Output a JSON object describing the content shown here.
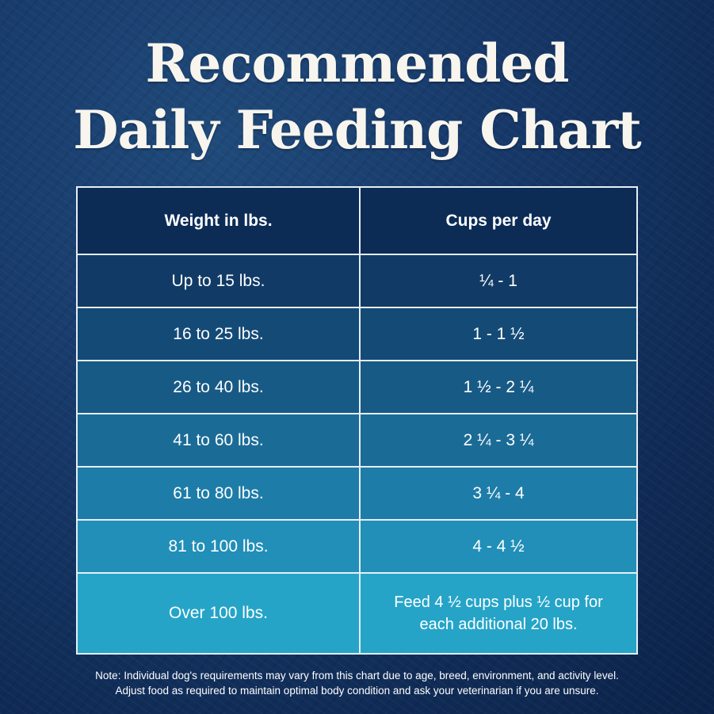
{
  "title": {
    "line1": "Recommended",
    "line2": "Daily Feeding Chart"
  },
  "table": {
    "headers": [
      "Weight in lbs.",
      "Cups per day"
    ],
    "rows": [
      [
        "Up to 15 lbs.",
        "¼  - 1"
      ],
      [
        "16 to 25 lbs.",
        "1  - 1 ½"
      ],
      [
        "26 to 40 lbs.",
        "1 ½  - 2 ¼"
      ],
      [
        "41 to 60 lbs.",
        "2 ¼  - 3 ¼"
      ],
      [
        "61 to 80 lbs.",
        "3 ¼  - 4"
      ],
      [
        "81 to 100 lbs.",
        "4  - 4 ½"
      ],
      [
        "Over 100 lbs.",
        "Feed 4 ½ cups plus ½ cup for each additional 20 lbs."
      ]
    ],
    "last_row_cups_lines": [
      "Feed 4 ½ cups plus ½ cup for",
      "each additional 20 lbs."
    ]
  },
  "note": {
    "line1": "Note: Individual dog's requirements may vary from this chart due to age, breed, environment, and activity level.",
    "line2": "Adjust food as required to maintain optimal body condition and ask your veterinarian if you are unsure."
  }
}
